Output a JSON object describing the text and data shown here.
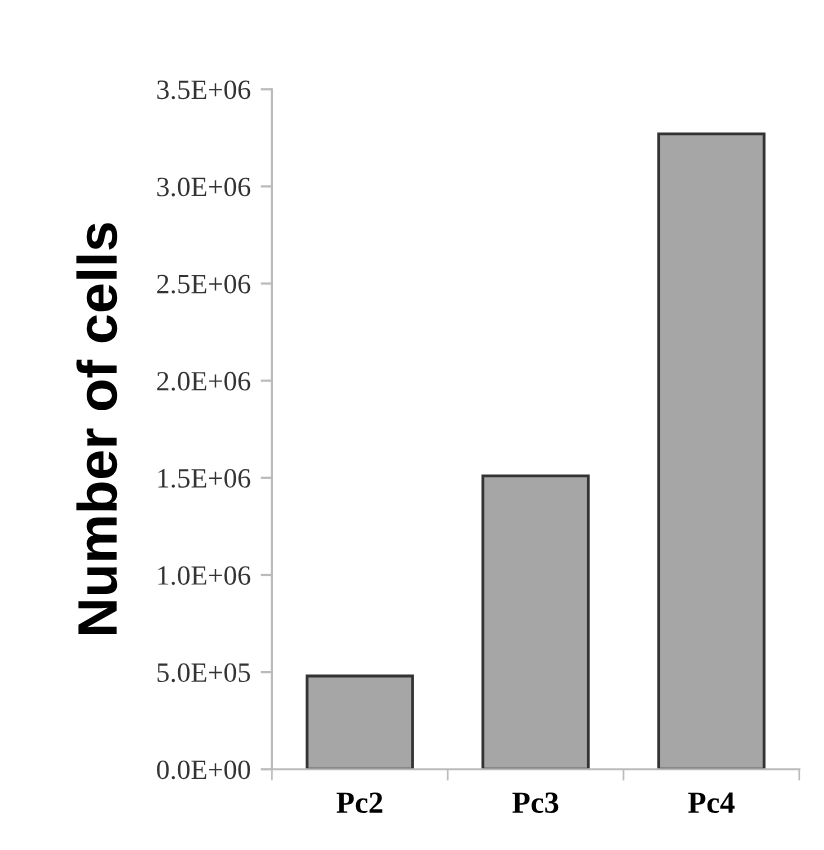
{
  "chart_data": {
    "type": "bar",
    "ylabel": "Number of cells",
    "categories": [
      "Pc2",
      "Pc3",
      "Pc4"
    ],
    "values": [
      480000,
      1510000,
      3270000
    ],
    "color": "#a6a6a6",
    "ylim": [
      0,
      3500000
    ],
    "yticks": [
      {
        "value": 0,
        "label": "0.0E+00"
      },
      {
        "value": 500000,
        "label": "5.0E+05"
      },
      {
        "value": 1000000,
        "label": "1.0E+06"
      },
      {
        "value": 1500000,
        "label": "1.5E+06"
      },
      {
        "value": 2000000,
        "label": "2.0E+06"
      },
      {
        "value": 2500000,
        "label": "2.5E+06"
      },
      {
        "value": 3000000,
        "label": "3.0E+06"
      },
      {
        "value": 3500000,
        "label": "3.5E+06"
      }
    ],
    "grid": false
  }
}
